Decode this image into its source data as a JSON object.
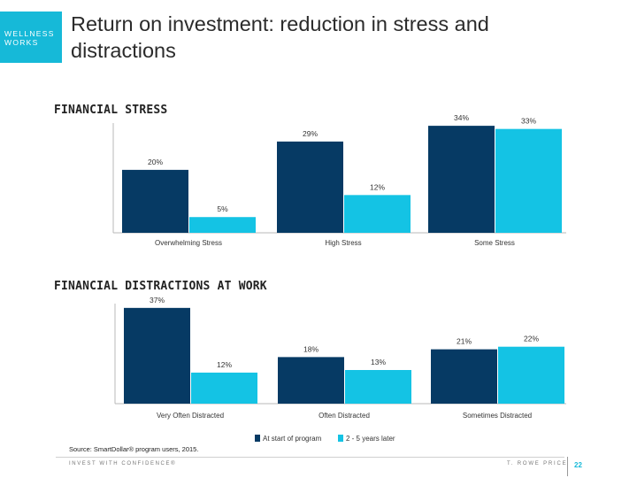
{
  "badge": {
    "line1": "WELLNESS",
    "line2": "WORKS"
  },
  "title": "Return on investment: reduction in stress and distractions",
  "colors": {
    "accent": "#16b9d8",
    "navy": "#063a64",
    "cyan": "#14c3e4",
    "axis": "#b8b8b8"
  },
  "legend": [
    {
      "name": "At start of program",
      "color": "#063a64"
    },
    {
      "name": "2 - 5 years later",
      "color": "#14c3e4"
    }
  ],
  "chart_data": [
    {
      "type": "bar",
      "title": "FINANCIAL STRESS",
      "categories": [
        "Overwhelming Stress",
        "High Stress",
        "Some Stress"
      ],
      "series": [
        {
          "name": "At start of program",
          "values": [
            20,
            29,
            34
          ],
          "labels": [
            "20%",
            "29%",
            "34%"
          ]
        },
        {
          "name": "2 - 5 years later",
          "values": [
            5,
            12,
            33
          ],
          "labels": [
            "5%",
            "12%",
            "33%"
          ]
        }
      ],
      "ylim": [
        0,
        36
      ],
      "xlabel": "",
      "ylabel": ""
    },
    {
      "type": "bar",
      "title": "FINANCIAL DISTRACTIONS AT WORK",
      "categories": [
        "Very Often Distracted",
        "Often Distracted",
        "Sometimes Distracted"
      ],
      "series": [
        {
          "name": "At start of program",
          "values": [
            37,
            18,
            21
          ],
          "labels": [
            "37%",
            "18%",
            "21%"
          ]
        },
        {
          "name": "2 - 5 years later",
          "values": [
            12,
            13,
            22
          ],
          "labels": [
            "12%",
            "13%",
            "22%"
          ]
        }
      ],
      "ylim": [
        0,
        39
      ],
      "xlabel": "",
      "ylabel": ""
    }
  ],
  "source": "Source: SmartDollar® program users, 2015.",
  "footer": {
    "tagline": "INVEST WITH CONFIDENCE®",
    "brand": "T. ROWE PRICE",
    "page": "22"
  }
}
